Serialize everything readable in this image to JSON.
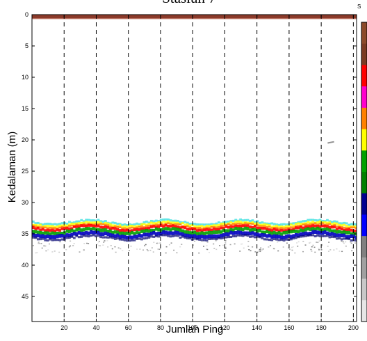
{
  "chart_data": {
    "type": "heatmap",
    "title": "Stasiun 7",
    "xlabel": "Jumlah Ping",
    "ylabel": "Kedalaman (m)",
    "xlim": [
      0,
      202
    ],
    "ylim": [
      0,
      49
    ],
    "y_reversed": true,
    "x_ticks": [
      20,
      40,
      60,
      80,
      100,
      120,
      140,
      160,
      180,
      200
    ],
    "y_ticks": [
      0,
      5,
      10,
      15,
      20,
      25,
      30,
      35,
      40,
      45
    ],
    "x_tick_labels": [
      "20",
      "40",
      "60",
      "80",
      "100",
      "120",
      "140",
      "160",
      "180",
      "200"
    ],
    "y_tick_labels": [
      "0",
      "5",
      "10",
      "15",
      "20",
      "25",
      "30",
      "35",
      "40",
      "45"
    ],
    "vertical_dashed_lines_at": [
      20,
      40,
      60,
      80,
      100,
      120,
      140,
      160,
      180,
      200
    ],
    "surface_band": {
      "depth_top": 0,
      "depth_bottom": 0.6,
      "color": "#8b3a2a"
    },
    "bottom_echo_band": {
      "depth_top": 33,
      "depth_peak": 34.2,
      "depth_bottom": 36,
      "scatter_to": 38
    },
    "isolated_target": {
      "x": [
        184,
        188
      ],
      "depth": 20.4
    },
    "colorbar": {
      "top_label": "S",
      "colors": [
        "#8b4a2a",
        "#7a3a22",
        "#ff0000",
        "#ff00cc",
        "#ff8000",
        "#ffff00",
        "#00a000",
        "#008000",
        "#000090",
        "#0000ff",
        "#808080",
        "#a0a0a0",
        "#c8c8c8",
        "#e6e6e6"
      ]
    },
    "grid": false
  }
}
